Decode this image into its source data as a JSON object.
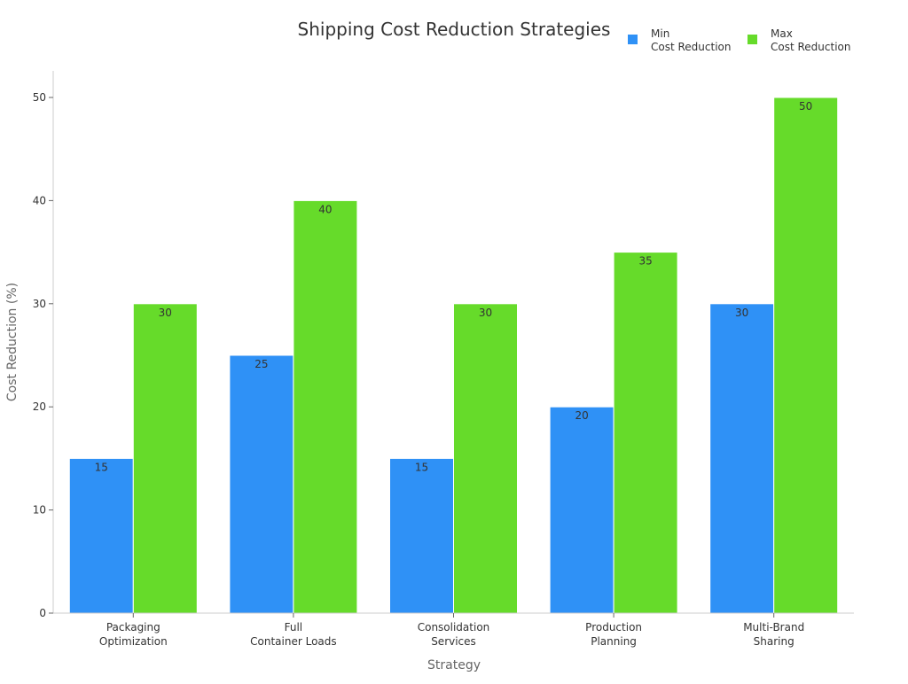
{
  "chart_data": {
    "type": "bar",
    "title": "Shipping Cost Reduction Strategies",
    "xlabel": "Strategy",
    "ylabel": "Cost Reduction (%)",
    "categories": [
      [
        "Packaging",
        "Optimization"
      ],
      [
        "Full",
        "Container Loads"
      ],
      [
        "Consolidation",
        "Services"
      ],
      [
        "Production",
        "Planning"
      ],
      [
        "Multi-Brand",
        "Sharing"
      ]
    ],
    "series": [
      {
        "name": [
          "Min",
          "Cost Reduction"
        ],
        "color": "#2F91F6",
        "values": [
          15,
          25,
          15,
          20,
          30
        ]
      },
      {
        "name": [
          "Max",
          "Cost Reduction"
        ],
        "color": "#66DB2A",
        "values": [
          30,
          40,
          30,
          35,
          50
        ]
      }
    ],
    "ylim": [
      0,
      52.5
    ],
    "yticks": [
      0,
      10,
      20,
      30,
      40,
      50
    ],
    "grid": false,
    "legend": "top-right",
    "data_labels": true
  }
}
